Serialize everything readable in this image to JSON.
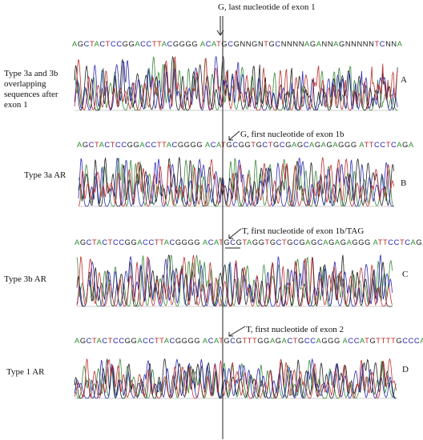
{
  "rows": [
    {
      "id": "A",
      "panel_letter": "A",
      "label": "Type 3a and 3b overlapping sequences after exon 1",
      "annotation": "G, last nucleotide of exon 1",
      "sequence": "AGCTACTCCGGACCTTACGGGG ACATGCGNNGNTGCNNNNAGANNAGNNNNNTCNNA",
      "colors": [
        "#3a8a3a",
        "#222222",
        "#2b2bb0",
        "#c03030"
      ]
    },
    {
      "id": "B",
      "panel_letter": "B",
      "label": "Type 3a AR",
      "annotation": "G, first nucleotide of exon 1b",
      "sequence": "AGCTACTCCGGACCTTACGGGG ACATGCGGTGCTGCGAGCAGAGAGGG ATTCCTCAGA",
      "colors": [
        "#3a8a3a",
        "#222222",
        "#2b2bb0",
        "#c03030"
      ]
    },
    {
      "id": "C",
      "panel_letter": "C",
      "label": "Type 3b AR",
      "annotation": "T, first nucleotide of exon 1b/TAG",
      "sequence": "AGCTACTCCGGACCTTACGGGG ACATGCGTAGGTGCTGCGAGCAGAGAGGG ATTCCTCAGA",
      "colors": [
        "#3a8a3a",
        "#222222",
        "#2b2bb0",
        "#c03030"
      ]
    },
    {
      "id": "D",
      "panel_letter": "D",
      "label": "Type 1 AR",
      "annotation": "T, first nucleotide of exon 2",
      "sequence": "AGCTACTCCGGACCTTACGGGG ACATGCGTTTGGAGACTGCCAGGG ACCATGTTTTGCCCA",
      "colors": [
        "#3a8a3a",
        "#222222",
        "#2b2bb0",
        "#c03030"
      ]
    }
  ]
}
